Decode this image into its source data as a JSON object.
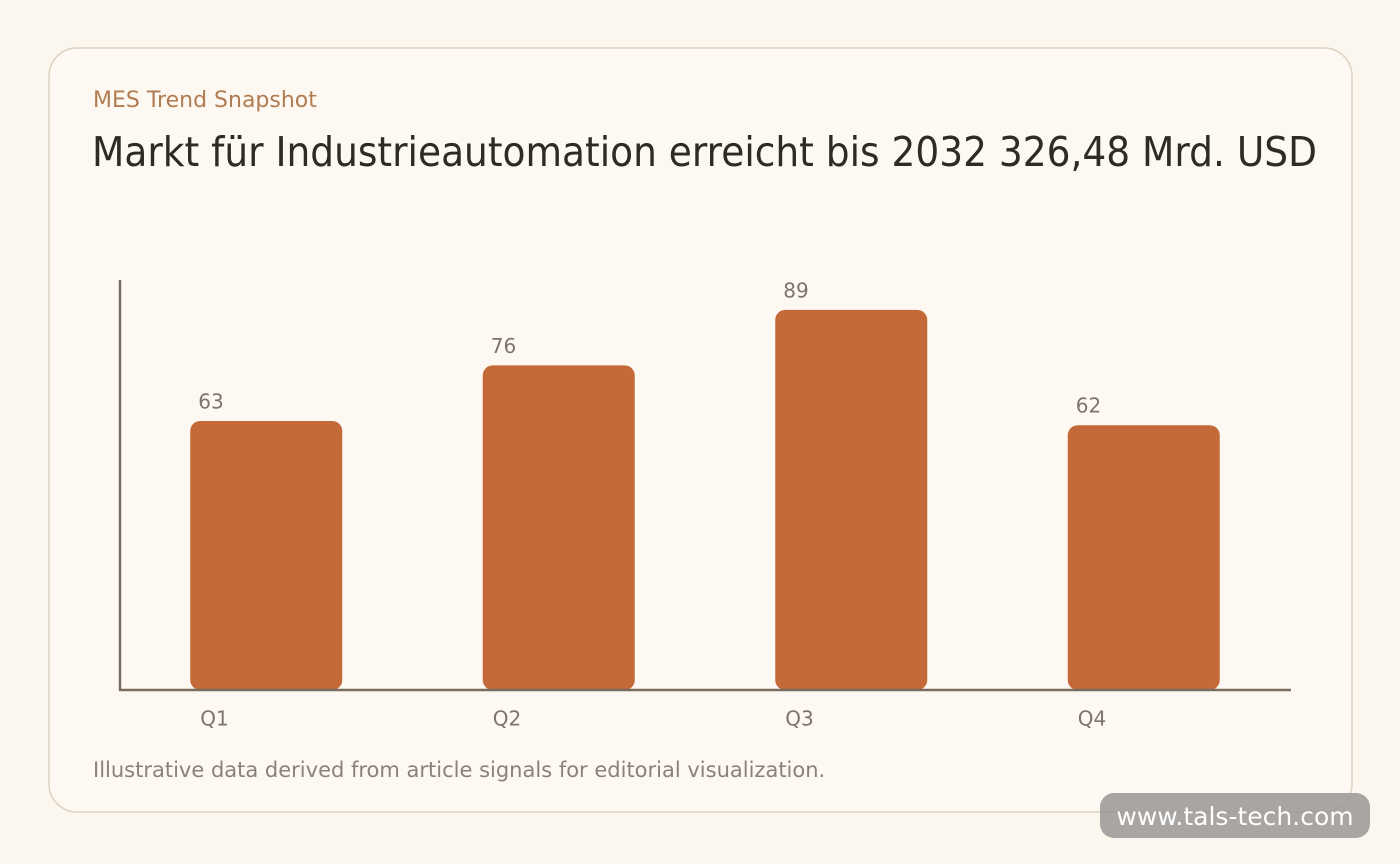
{
  "chart_data": {
    "type": "bar",
    "kicker": "MES Trend Snapshot",
    "title": "Markt für Industrieautomation erreicht bis 2032 326,48 Mrd. USD",
    "categories": [
      "Q1",
      "Q2",
      "Q3",
      "Q4"
    ],
    "values": [
      63,
      76,
      89,
      62
    ],
    "color": "#c46a38",
    "ylim": [
      0,
      96
    ],
    "note": "Illustrative data derived from article signals for editorial visualization."
  },
  "watermark": "www.tals-tech.com"
}
